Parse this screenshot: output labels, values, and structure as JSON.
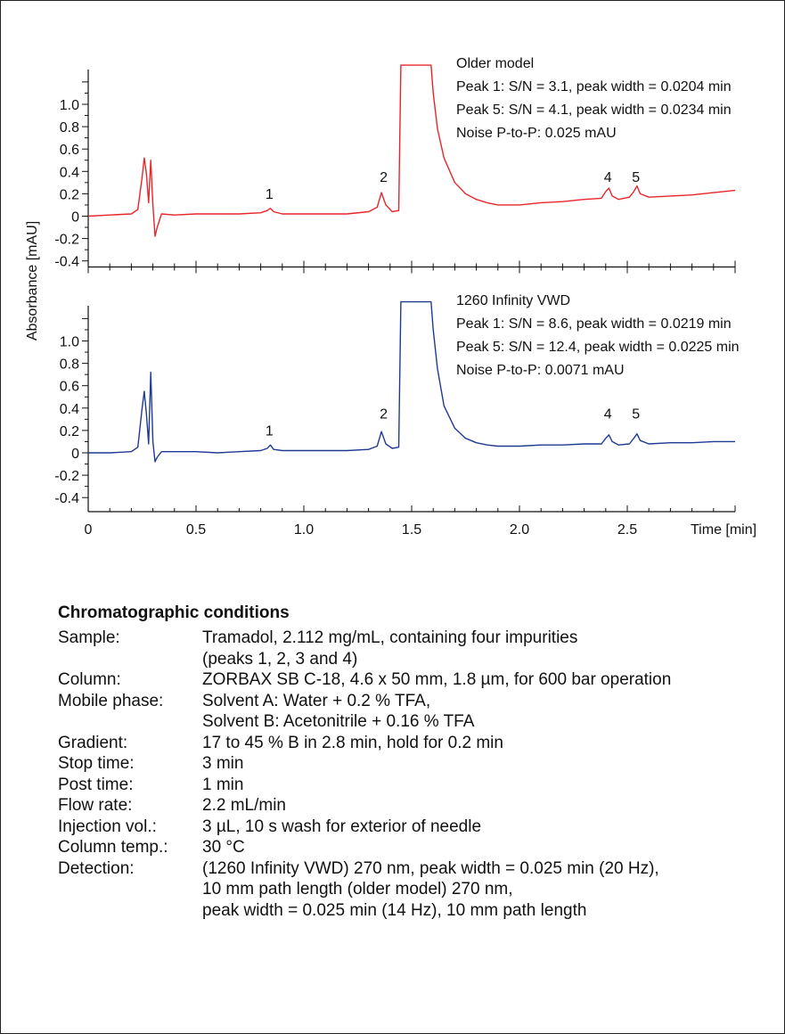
{
  "colors": {
    "older": "#e8262a",
    "vwd": "#1f3a93",
    "axis": "#111111"
  },
  "chart_data": [
    {
      "type": "line",
      "series": [
        {
          "name": "Older model",
          "color": "#e8262a"
        }
      ],
      "ylabel": "Absorbance [mAU]",
      "yticks": [
        "1.0",
        "0.8",
        "0.6",
        "0.4",
        "0.2",
        "0",
        "-0.2",
        "-0.4"
      ],
      "ylim": [
        -0.45,
        1.35
      ],
      "xlim": [
        0,
        3.0
      ],
      "annotations": [
        "Older model",
        "Peak 1: S/N = 3.1, peak width = 0.0204 min",
        "Peak 5: S/N = 4.1, peak width = 0.0234 min",
        "Noise P-to-P: 0.025 mAU"
      ],
      "peak_labels": [
        {
          "text": "1",
          "x": 0.84,
          "y": 0.14
        },
        {
          "text": "2",
          "x": 1.37,
          "y": 0.29
        },
        {
          "text": "4",
          "x": 2.41,
          "y": 0.29
        },
        {
          "text": "5",
          "x": 2.54,
          "y": 0.29
        }
      ],
      "x": [
        0,
        0.1,
        0.2,
        0.23,
        0.25,
        0.26,
        0.27,
        0.28,
        0.29,
        0.3,
        0.31,
        0.32,
        0.34,
        0.4,
        0.5,
        0.6,
        0.7,
        0.8,
        0.83,
        0.845,
        0.86,
        0.9,
        1.0,
        1.2,
        1.3,
        1.34,
        1.36,
        1.38,
        1.41,
        1.44,
        1.45,
        1.46,
        1.5,
        1.55,
        1.58,
        1.59,
        1.6,
        1.62,
        1.65,
        1.7,
        1.75,
        1.8,
        1.85,
        1.9,
        2.0,
        2.1,
        2.2,
        2.3,
        2.38,
        2.4,
        2.415,
        2.43,
        2.46,
        2.51,
        2.53,
        2.545,
        2.56,
        2.6,
        2.7,
        2.8,
        2.9,
        3.0
      ],
      "y": [
        0.0,
        0.01,
        0.02,
        0.06,
        0.35,
        0.52,
        0.38,
        0.12,
        0.5,
        0.1,
        -0.18,
        -0.1,
        0.02,
        0.01,
        0.02,
        0.02,
        0.02,
        0.03,
        0.05,
        0.07,
        0.04,
        0.02,
        0.02,
        0.02,
        0.04,
        0.08,
        0.21,
        0.1,
        0.04,
        0.05,
        1.35,
        1.35,
        1.35,
        1.35,
        1.35,
        1.35,
        1.1,
        0.78,
        0.52,
        0.3,
        0.2,
        0.15,
        0.12,
        0.1,
        0.1,
        0.12,
        0.13,
        0.15,
        0.16,
        0.22,
        0.25,
        0.18,
        0.15,
        0.17,
        0.22,
        0.27,
        0.2,
        0.17,
        0.18,
        0.19,
        0.21,
        0.23
      ]
    },
    {
      "type": "line",
      "series": [
        {
          "name": "1260 Infinity VWD",
          "color": "#1f3a93"
        }
      ],
      "ylabel": "Absorbance [mAU]",
      "yticks": [
        "1.0",
        "0.8",
        "0.6",
        "0.4",
        "0.2",
        "0",
        "-0.2",
        "-0.4"
      ],
      "ylim": [
        -0.45,
        1.35
      ],
      "xlim": [
        0,
        3.0
      ],
      "xticks": [
        "0",
        "0.5",
        "1.0",
        "1.5",
        "2.0",
        "2.5"
      ],
      "xlabel": "Time [min]",
      "annotations": [
        "1260 Infinity VWD",
        "Peak 1: S/N = 8.6, peak width = 0.0219 min",
        "Peak 5: S/N = 12.4, peak width = 0.0225 min",
        "Noise P-to-P: 0.0071 mAU"
      ],
      "peak_labels": [
        {
          "text": "1",
          "x": 0.84,
          "y": 0.14
        },
        {
          "text": "2",
          "x": 1.37,
          "y": 0.29
        },
        {
          "text": "4",
          "x": 2.41,
          "y": 0.29
        },
        {
          "text": "5",
          "x": 2.54,
          "y": 0.29
        }
      ],
      "x": [
        0,
        0.1,
        0.2,
        0.23,
        0.25,
        0.26,
        0.27,
        0.28,
        0.29,
        0.3,
        0.31,
        0.32,
        0.34,
        0.4,
        0.5,
        0.6,
        0.7,
        0.8,
        0.83,
        0.845,
        0.86,
        0.9,
        1.0,
        1.2,
        1.3,
        1.34,
        1.36,
        1.38,
        1.41,
        1.44,
        1.45,
        1.46,
        1.5,
        1.55,
        1.58,
        1.59,
        1.6,
        1.62,
        1.65,
        1.7,
        1.75,
        1.8,
        1.85,
        1.9,
        2.0,
        2.1,
        2.2,
        2.3,
        2.38,
        2.4,
        2.415,
        2.43,
        2.46,
        2.51,
        2.53,
        2.545,
        2.56,
        2.6,
        2.7,
        2.8,
        2.9,
        3.0
      ],
      "y": [
        0.0,
        0.0,
        0.01,
        0.05,
        0.4,
        0.55,
        0.35,
        0.08,
        0.72,
        0.1,
        -0.08,
        -0.04,
        0.01,
        0.01,
        0.01,
        0.0,
        0.01,
        0.02,
        0.04,
        0.07,
        0.03,
        0.02,
        0.02,
        0.02,
        0.03,
        0.06,
        0.19,
        0.08,
        0.04,
        0.05,
        1.35,
        1.35,
        1.35,
        1.35,
        1.35,
        1.35,
        1.1,
        0.75,
        0.42,
        0.22,
        0.13,
        0.09,
        0.07,
        0.06,
        0.06,
        0.07,
        0.07,
        0.08,
        0.08,
        0.13,
        0.16,
        0.1,
        0.07,
        0.08,
        0.13,
        0.17,
        0.11,
        0.08,
        0.09,
        0.09,
        0.1,
        0.1
      ]
    }
  ],
  "conditions": {
    "title": "Chromatographic conditions",
    "rows": [
      {
        "label": "Sample:",
        "lines": [
          "Tramadol, 2.112 mg/mL, containing four impurities",
          "(peaks 1, 2, 3 and 4)"
        ]
      },
      {
        "label": "Column:",
        "lines": [
          "ZORBAX SB C-18, 4.6 x 50 mm, 1.8 µm, for 600 bar operation"
        ]
      },
      {
        "label": "Mobile phase:",
        "lines": [
          "Solvent A: Water + 0.2 % TFA,",
          "Solvent B: Acetonitrile + 0.16 % TFA"
        ]
      },
      {
        "label": "Gradient:",
        "lines": [
          "17 to 45 % B in 2.8 min, hold for 0.2 min"
        ]
      },
      {
        "label": "Stop time:",
        "lines": [
          "3 min"
        ]
      },
      {
        "label": "Post time:",
        "lines": [
          "1 min"
        ]
      },
      {
        "label": "Flow rate:",
        "lines": [
          "2.2 mL/min"
        ]
      },
      {
        "label": "Injection vol.:",
        "lines": [
          "3 µL, 10 s wash for exterior of needle"
        ]
      },
      {
        "label": "Column temp.:",
        "lines": [
          "30 °C"
        ]
      },
      {
        "label": "Detection:",
        "lines": [
          "(1260 Infinity VWD) 270 nm, peak width = 0.025 min (20 Hz),",
          "10 mm path length (older model) 270 nm,",
          "peak width = 0.025 min (14 Hz), 10 mm path length"
        ]
      }
    ]
  }
}
